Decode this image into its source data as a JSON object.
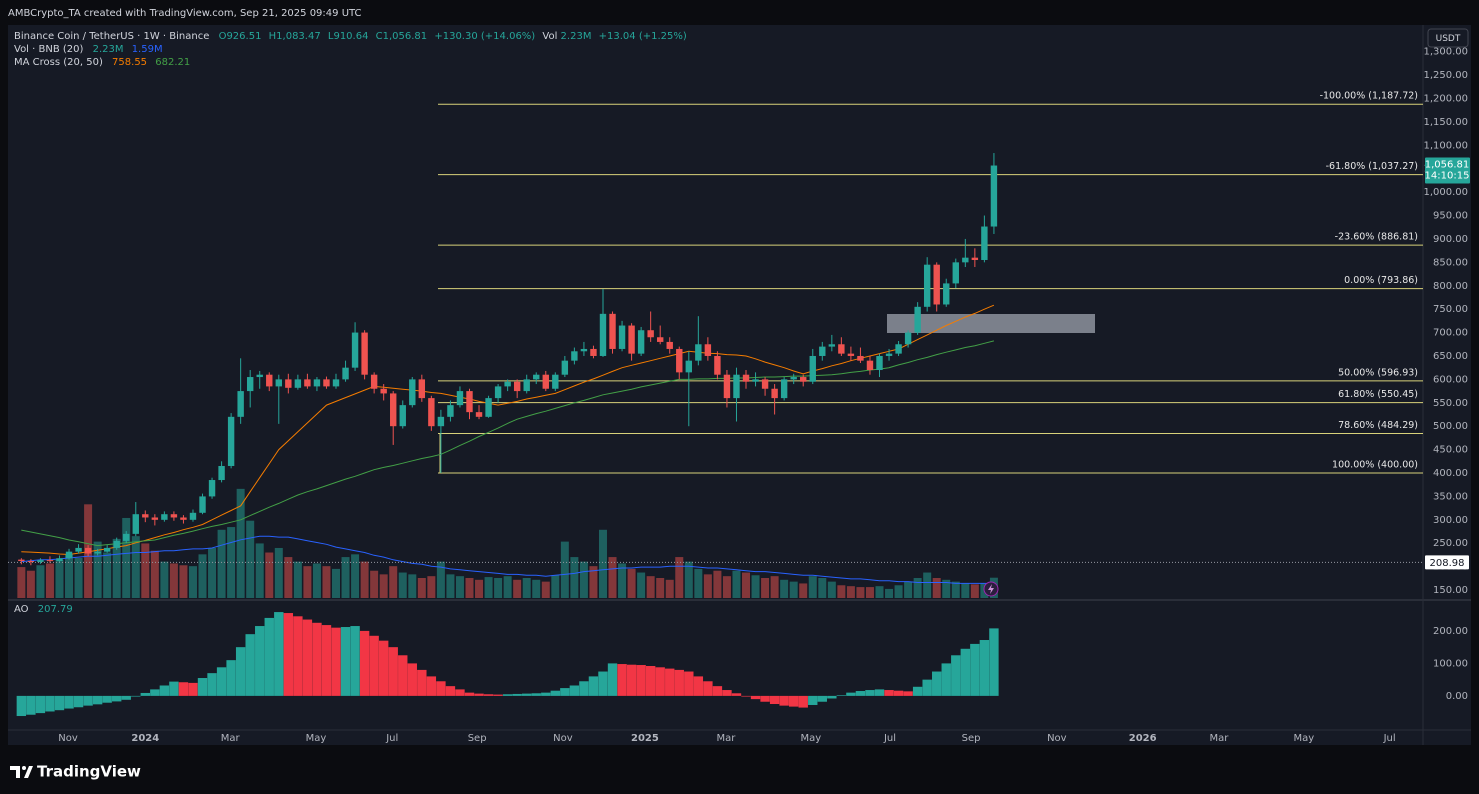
{
  "chart_data": {
    "type": "candlestick",
    "title": "AMBCrypto_TA created with TradingView.com, Sep 21, 2025 09:49 UTC",
    "symbol": "Binance Coin / TetherUS · 1W · Binance",
    "legend_values": [
      "O926.51",
      "H1,083.47",
      "L910.64",
      "C1,056.81",
      "+130.30 (+14.06%)",
      "Vol",
      "2.23M",
      "+13.04 (+1.25%)"
    ],
    "currency": "USDT",
    "brand": "TradingView",
    "up_color": "#26a69a",
    "down_color": "#ef5350",
    "ohlc": [
      [
        215,
        218,
        205,
        212
      ],
      [
        212,
        216,
        203,
        210
      ],
      [
        210,
        218,
        206,
        214
      ],
      [
        214,
        222,
        208,
        212
      ],
      [
        212,
        224,
        210,
        218
      ],
      [
        218,
        238,
        215,
        232
      ],
      [
        232,
        248,
        228,
        240
      ],
      [
        240,
        246,
        222,
        228
      ],
      [
        228,
        238,
        224,
        232
      ],
      [
        232,
        246,
        230,
        240
      ],
      [
        240,
        262,
        236,
        255
      ],
      [
        255,
        276,
        250,
        270
      ],
      [
        270,
        338,
        265,
        312
      ],
      [
        312,
        320,
        295,
        305
      ],
      [
        305,
        312,
        288,
        300
      ],
      [
        300,
        318,
        296,
        312
      ],
      [
        312,
        318,
        298,
        305
      ],
      [
        305,
        310,
        292,
        300
      ],
      [
        300,
        322,
        296,
        315
      ],
      [
        315,
        356,
        312,
        350
      ],
      [
        350,
        390,
        345,
        385
      ],
      [
        385,
        425,
        380,
        415
      ],
      [
        415,
        528,
        410,
        520
      ],
      [
        520,
        645,
        505,
        575
      ],
      [
        575,
        620,
        540,
        605
      ],
      [
        605,
        618,
        580,
        610
      ],
      [
        610,
        615,
        575,
        585
      ],
      [
        585,
        610,
        505,
        600
      ],
      [
        600,
        612,
        570,
        582
      ],
      [
        582,
        610,
        578,
        600
      ],
      [
        600,
        612,
        580,
        585
      ],
      [
        585,
        605,
        575,
        600
      ],
      [
        600,
        606,
        580,
        585
      ],
      [
        585,
        612,
        580,
        600
      ],
      [
        600,
        640,
        595,
        625
      ],
      [
        625,
        722,
        618,
        700
      ],
      [
        700,
        705,
        600,
        610
      ],
      [
        610,
        615,
        570,
        580
      ],
      [
        580,
        590,
        555,
        570
      ],
      [
        570,
        575,
        460,
        500
      ],
      [
        500,
        555,
        495,
        545
      ],
      [
        545,
        605,
        540,
        600
      ],
      [
        600,
        610,
        552,
        560
      ],
      [
        560,
        565,
        490,
        500
      ],
      [
        500,
        535,
        400,
        520
      ],
      [
        520,
        555,
        510,
        545
      ],
      [
        545,
        585,
        540,
        575
      ],
      [
        575,
        580,
        515,
        530
      ],
      [
        530,
        545,
        515,
        520
      ],
      [
        520,
        565,
        518,
        560
      ],
      [
        560,
        590,
        550,
        585
      ],
      [
        585,
        600,
        575,
        595
      ],
      [
        595,
        600,
        560,
        575
      ],
      [
        575,
        610,
        570,
        600
      ],
      [
        600,
        615,
        590,
        610
      ],
      [
        610,
        618,
        575,
        580
      ],
      [
        580,
        615,
        575,
        610
      ],
      [
        610,
        650,
        605,
        640
      ],
      [
        640,
        668,
        632,
        660
      ],
      [
        660,
        680,
        650,
        665
      ],
      [
        665,
        672,
        645,
        650
      ],
      [
        650,
        793,
        648,
        740
      ],
      [
        740,
        745,
        655,
        665
      ],
      [
        665,
        725,
        660,
        715
      ],
      [
        715,
        720,
        640,
        655
      ],
      [
        655,
        712,
        650,
        705
      ],
      [
        705,
        745,
        680,
        690
      ],
      [
        690,
        715,
        675,
        680
      ],
      [
        680,
        690,
        655,
        665
      ],
      [
        665,
        670,
        600,
        615
      ],
      [
        615,
        660,
        500,
        640
      ],
      [
        640,
        735,
        630,
        675
      ],
      [
        675,
        690,
        640,
        650
      ],
      [
        650,
        660,
        600,
        610
      ],
      [
        610,
        620,
        540,
        560
      ],
      [
        560,
        625,
        510,
        610
      ],
      [
        610,
        620,
        580,
        595
      ],
      [
        595,
        615,
        585,
        600
      ],
      [
        600,
        605,
        565,
        580
      ],
      [
        580,
        590,
        525,
        560
      ],
      [
        560,
        605,
        555,
        600
      ],
      [
        600,
        612,
        590,
        605
      ],
      [
        605,
        610,
        585,
        595
      ],
      [
        595,
        665,
        590,
        650
      ],
      [
        650,
        680,
        640,
        670
      ],
      [
        670,
        695,
        660,
        675
      ],
      [
        675,
        690,
        650,
        655
      ],
      [
        655,
        670,
        640,
        650
      ],
      [
        650,
        668,
        635,
        640
      ],
      [
        640,
        650,
        610,
        620
      ],
      [
        620,
        655,
        605,
        650
      ],
      [
        650,
        665,
        640,
        655
      ],
      [
        655,
        682,
        650,
        675
      ],
      [
        675,
        705,
        668,
        700
      ],
      [
        700,
        765,
        695,
        755
      ],
      [
        755,
        861,
        745,
        845
      ],
      [
        845,
        850,
        745,
        760
      ],
      [
        760,
        815,
        755,
        805
      ],
      [
        805,
        858,
        795,
        850
      ],
      [
        850,
        900,
        840,
        860
      ],
      [
        860,
        880,
        840,
        855
      ],
      [
        855,
        950,
        850,
        926.51
      ],
      [
        926.51,
        1083.47,
        910.64,
        1056.81
      ]
    ],
    "xlim": [
      -1.4,
      147
    ],
    "xticks": [
      {
        "value": 4.9,
        "label": "Nov"
      },
      {
        "value": 13.0,
        "label": "2024"
      },
      {
        "value": 21.9,
        "label": "Mar"
      },
      {
        "value": 30.9,
        "label": "May"
      },
      {
        "value": 38.9,
        "label": "Jul"
      },
      {
        "value": 47.8,
        "label": "Sep"
      },
      {
        "value": 56.8,
        "label": "Nov"
      },
      {
        "value": 65.4,
        "label": "2025"
      },
      {
        "value": 73.9,
        "label": "Mar"
      },
      {
        "value": 82.8,
        "label": "May"
      },
      {
        "value": 91.1,
        "label": "Jul"
      },
      {
        "value": 99.6,
        "label": "Sep"
      },
      {
        "value": 108.6,
        "label": "Nov"
      },
      {
        "value": 117.6,
        "label": "2026"
      },
      {
        "value": 125.6,
        "label": "Mar"
      },
      {
        "value": 134.5,
        "label": "May"
      },
      {
        "value": 143.5,
        "label": "Jul"
      }
    ],
    "ylim": [
      133,
      1357
    ],
    "yticks": [
      {
        "value": 150,
        "label": "150.00"
      },
      {
        "value": 200,
        "label": "200.00"
      },
      {
        "value": 250,
        "label": "250.00"
      },
      {
        "value": 300,
        "label": "300.00"
      },
      {
        "value": 350,
        "label": "350.00"
      },
      {
        "value": 400,
        "label": "400.00"
      },
      {
        "value": 450,
        "label": "450.00"
      },
      {
        "value": 500,
        "label": "500.00"
      },
      {
        "value": 550,
        "label": "550.00"
      },
      {
        "value": 600,
        "label": "600.00"
      },
      {
        "value": 650,
        "label": "650.00"
      },
      {
        "value": 700,
        "label": "700.00"
      },
      {
        "value": 750,
        "label": "750.00"
      },
      {
        "value": 800,
        "label": "800.00"
      },
      {
        "value": 850,
        "label": "850.00"
      },
      {
        "value": 900,
        "label": "900.00"
      },
      {
        "value": 950,
        "label": "950.00"
      },
      {
        "value": 1000,
        "label": "1,000.00"
      },
      {
        "value": 1050,
        "label": "1,050.00"
      },
      {
        "value": 1100,
        "label": "1,100.00"
      },
      {
        "value": 1150,
        "label": "1,150.00"
      },
      {
        "value": 1200,
        "label": "1,200.00"
      },
      {
        "value": 1250,
        "label": "1,250.00"
      },
      {
        "value": 1300,
        "label": "1,300.00"
      }
    ],
    "grid": false,
    "current_price": {
      "value": 1056.81,
      "label": "1,056.81",
      "countdown": "14:10:15"
    },
    "price_line": {
      "value": 208.98,
      "label": "208.98"
    },
    "fib_color": "#d8d27a",
    "fib_levels": [
      {
        "value": 1187.72,
        "label": "-100.00% (1,187.72)"
      },
      {
        "value": 1037.27,
        "label": "-61.80% (1,037.27)"
      },
      {
        "value": 886.81,
        "label": "-23.60% (886.81)"
      },
      {
        "value": 793.86,
        "label": "0.00% (793.86)"
      },
      {
        "value": 596.93,
        "label": "50.00% (596.93)"
      },
      {
        "value": 550.45,
        "label": "61.80% (550.45)"
      },
      {
        "value": 484.29,
        "label": "78.60% (484.29)"
      },
      {
        "value": 400.0,
        "label": "100.00% (400.00)"
      }
    ],
    "ma": {
      "name": "MA Cross (20, 50)",
      "series": [
        {
          "color": "#f57c00",
          "last_label": "758.55",
          "values": [
            232,
            231,
            230,
            229,
            227,
            226,
            229,
            232,
            235,
            238,
            242,
            245,
            251,
            256,
            262,
            268,
            273,
            279,
            284,
            290,
            300,
            310,
            320,
            330,
            360,
            390,
            420,
            450,
            469,
            488,
            507,
            526,
            545,
            553,
            561,
            569,
            577,
            585,
            583,
            581,
            579,
            577,
            575,
            572,
            570,
            566,
            562,
            558,
            553,
            549,
            545,
            549,
            553,
            558,
            562,
            566,
            570,
            578,
            586,
            594,
            601,
            609,
            617,
            625,
            630,
            635,
            640,
            645,
            650,
            655,
            660,
            658,
            656,
            655,
            653,
            652,
            650,
            644,
            637,
            631,
            625,
            618,
            612,
            618,
            623,
            629,
            634,
            640,
            645,
            650,
            655,
            660,
            665,
            675,
            685,
            695,
            705,
            715,
            724,
            733,
            741,
            750,
            758.55
          ]
        },
        {
          "color": "#43a047",
          "last_label": "682.21",
          "values": [
            278,
            274,
            270,
            266,
            262,
            257,
            253,
            249,
            245,
            247,
            249,
            251,
            253,
            255,
            257,
            262,
            267,
            271,
            276,
            281,
            286,
            290,
            295,
            300,
            309,
            318,
            327,
            335,
            344,
            353,
            360,
            366,
            373,
            380,
            387,
            393,
            400,
            407,
            412,
            416,
            421,
            426,
            431,
            435,
            440,
            449,
            459,
            468,
            478,
            487,
            496,
            506,
            515,
            521,
            527,
            532,
            538,
            544,
            550,
            555,
            561,
            567,
            571,
            575,
            579,
            584,
            588,
            592,
            596,
            600,
            600,
            601,
            601,
            602,
            602,
            603,
            603,
            604,
            605,
            605,
            606,
            607,
            607,
            608,
            609,
            610,
            612,
            615,
            617,
            620,
            622,
            625,
            631,
            636,
            642,
            647,
            653,
            658,
            663,
            668,
            672,
            677,
            682.21
          ]
        }
      ]
    },
    "volume": {
      "name": "Vol · BNB (20)",
      "ylim": [
        0,
        63
      ],
      "value_label": "2.23M",
      "values": [
        3.4,
        3.0,
        3.6,
        3.8,
        4.2,
        4.8,
        4.4,
        10.3,
        6.2,
        5.0,
        6.5,
        8.8,
        6.8,
        6.0,
        5.2,
        4.0,
        3.8,
        3.6,
        3.5,
        4.8,
        5.5,
        7.5,
        7.8,
        12.0,
        8.5,
        6.0,
        5.0,
        5.5,
        4.5,
        4.0,
        3.5,
        3.8,
        3.5,
        3.2,
        4.5,
        4.8,
        4.0,
        3.0,
        2.6,
        3.5,
        2.8,
        2.6,
        2.2,
        2.4,
        4.0,
        2.6,
        2.4,
        2.2,
        2.0,
        2.3,
        2.2,
        2.4,
        2.0,
        2.2,
        2.0,
        1.8,
        2.5,
        6.2,
        4.5,
        4.0,
        3.5,
        7.5,
        4.5,
        3.8,
        3.2,
        2.8,
        2.4,
        2.2,
        2.0,
        4.5,
        4.0,
        3.2,
        2.6,
        3.0,
        2.4,
        3.0,
        2.8,
        2.5,
        2.2,
        2.4,
        2.0,
        1.8,
        1.6,
        2.4,
        2.2,
        1.8,
        1.4,
        1.3,
        1.2,
        1.2,
        1.3,
        1.0,
        1.4,
        1.8,
        2.2,
        2.8,
        2.2,
        2.0,
        1.8,
        1.6,
        1.5,
        1.6,
        2.23
      ],
      "ma": {
        "color": "#2962ff",
        "last_label": "1.59M",
        "values": [
          4.0,
          4.1,
          4.2,
          4.2,
          4.3,
          4.4,
          4.5,
          4.6,
          4.6,
          4.7,
          4.8,
          4.9,
          5.0,
          5.0,
          5.1,
          5.2,
          5.2,
          5.3,
          5.4,
          5.4,
          5.5,
          5.8,
          6.1,
          6.4,
          6.6,
          6.8,
          6.8,
          6.7,
          6.7,
          6.5,
          6.3,
          6.1,
          5.9,
          5.6,
          5.4,
          5.2,
          5.0,
          4.7,
          4.5,
          4.2,
          4.0,
          3.8,
          3.7,
          3.5,
          3.4,
          3.2,
          3.1,
          3.0,
          2.9,
          2.8,
          2.7,
          2.6,
          2.6,
          2.5,
          2.5,
          2.4,
          2.5,
          2.6,
          2.7,
          2.9,
          3.0,
          3.1,
          3.2,
          3.3,
          3.3,
          3.4,
          3.4,
          3.4,
          3.5,
          3.5,
          3.5,
          3.4,
          3.3,
          3.3,
          3.2,
          3.1,
          3.0,
          2.9,
          2.9,
          2.8,
          2.7,
          2.6,
          2.5,
          2.5,
          2.4,
          2.3,
          2.2,
          2.1,
          2.1,
          2.0,
          1.9,
          1.9,
          1.8,
          1.8,
          1.7,
          1.7,
          1.7,
          1.7,
          1.6,
          1.6,
          1.6,
          1.6,
          1.59
        ]
      }
    },
    "ao": {
      "name": "AO",
      "value_label": "207.79",
      "up_color": "#26a69a",
      "down_color": "#f23645",
      "ylim": [
        -105,
        289
      ],
      "yticks": [
        {
          "value": 200,
          "label": "200.00"
        },
        {
          "value": 100,
          "label": "100.00"
        },
        {
          "value": 0,
          "label": "0.00"
        }
      ],
      "values": [
        -62,
        -58,
        -53,
        -48,
        -44,
        -39,
        -35,
        -30,
        -26,
        -21,
        -17,
        -12,
        -2,
        9,
        20,
        32,
        44,
        42,
        40,
        55,
        70,
        88,
        110,
        150,
        190,
        215,
        240,
        258,
        255,
        245,
        235,
        225,
        218,
        210,
        212,
        215,
        200,
        185,
        170,
        150,
        125,
        100,
        80,
        60,
        45,
        30,
        20,
        10,
        7,
        5,
        4,
        5,
        6,
        7,
        8,
        10,
        16,
        24,
        32,
        45,
        60,
        75,
        100,
        98,
        96,
        95,
        92,
        88,
        84,
        80,
        75,
        60,
        45,
        30,
        18,
        8,
        -2,
        -10,
        -18,
        -25,
        -30,
        -33,
        -36,
        -28,
        -18,
        -8,
        2,
        10,
        15,
        18,
        20,
        18,
        16,
        14,
        28,
        50,
        75,
        100,
        125,
        145,
        160,
        172,
        207.79
      ]
    }
  }
}
